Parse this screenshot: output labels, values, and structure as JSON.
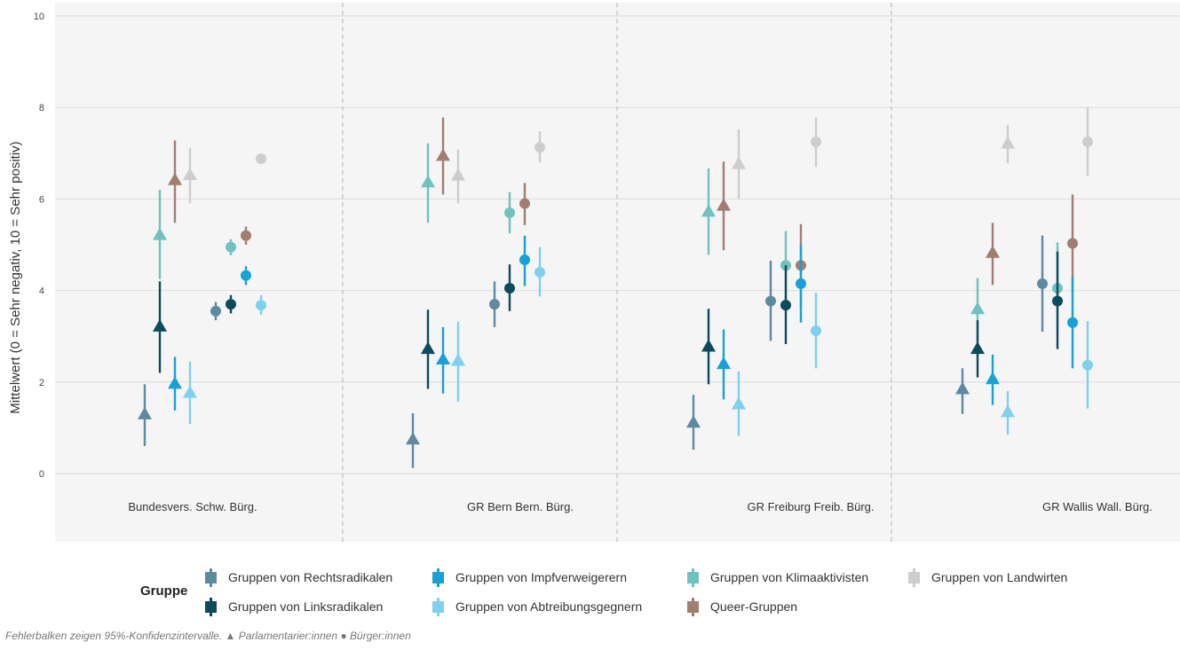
{
  "chart_data": {
    "type": "scatter",
    "title": "",
    "xlabel": "",
    "ylabel": "Mittelwert (0 = Sehr negativ, 10 = Sehr positiv)",
    "ylim": [
      -1.5,
      10
    ],
    "yticks": [
      0,
      2,
      4,
      6,
      8,
      10
    ],
    "grid": true,
    "legend_position": "bottom",
    "legend_title": "Gruppe",
    "categories": [
      "Bundesvers.",
      "Schw. Bürg.",
      "GR Bern",
      "Bern. Bürg.",
      "GR Freiburg",
      "Freib. Bürg.",
      "GR Wallis",
      "Wall. Bürg."
    ],
    "panels": [
      "Bundesversammlung / Schweiz",
      "Bern",
      "Freiburg",
      "Wallis"
    ],
    "series": [
      {
        "name": "Gruppen von Rechtsradikalen",
        "color": "#5e8aa1",
        "values": [
          1.3,
          3.55,
          0.75,
          3.7,
          1.12,
          3.77,
          1.85,
          4.15
        ],
        "lower": [
          0.6,
          3.35,
          0.12,
          3.2,
          0.52,
          2.9,
          1.3,
          3.1
        ],
        "upper": [
          1.95,
          3.75,
          1.32,
          4.2,
          1.72,
          4.65,
          2.3,
          5.2
        ]
      },
      {
        "name": "Gruppen von Linksradikalen",
        "color": "#0c4a5e",
        "values": [
          3.22,
          3.7,
          2.73,
          4.05,
          2.78,
          3.68,
          2.73,
          3.77
        ],
        "lower": [
          2.2,
          3.5,
          1.85,
          3.55,
          1.95,
          2.83,
          2.1,
          2.72
        ],
        "upper": [
          4.2,
          3.9,
          3.58,
          4.57,
          3.6,
          4.55,
          3.35,
          4.85
        ]
      },
      {
        "name": "Gruppen von Impfverweigerern",
        "color": "#17a1d4",
        "values": [
          1.97,
          4.33,
          2.5,
          4.67,
          2.4,
          4.15,
          2.07,
          3.3
        ],
        "lower": [
          1.38,
          4.12,
          1.75,
          4.1,
          1.62,
          3.3,
          1.5,
          2.3
        ],
        "upper": [
          2.55,
          4.53,
          3.2,
          5.2,
          3.15,
          5.0,
          2.6,
          4.3
        ]
      },
      {
        "name": "Gruppen von Abtreibungsgegnern",
        "color": "#7fd0ef",
        "values": [
          1.77,
          3.68,
          2.47,
          4.4,
          1.52,
          3.12,
          1.35,
          2.37
        ],
        "lower": [
          1.08,
          3.47,
          1.57,
          3.87,
          0.82,
          2.3,
          0.85,
          1.42
        ],
        "upper": [
          2.45,
          3.9,
          3.32,
          4.95,
          2.23,
          3.95,
          1.8,
          3.33
        ]
      },
      {
        "name": "Gruppen von Klimaaktivisten",
        "color": "#70c1bf",
        "values": [
          5.22,
          4.95,
          6.37,
          5.7,
          5.73,
          4.55,
          3.6,
          4.05
        ],
        "lower": [
          4.25,
          4.77,
          5.48,
          5.25,
          4.78,
          3.78,
          2.9,
          3.05
        ],
        "upper": [
          6.2,
          5.12,
          7.22,
          6.15,
          6.67,
          5.3,
          4.27,
          5.05
        ]
      },
      {
        "name": "Queer-Gruppen",
        "color": "#a17e70",
        "values": [
          6.42,
          5.2,
          6.95,
          5.9,
          5.86,
          4.55,
          4.83,
          5.03
        ],
        "lower": [
          5.48,
          5.0,
          6.1,
          5.43,
          4.88,
          3.62,
          4.12,
          3.95
        ],
        "upper": [
          7.28,
          5.4,
          7.78,
          6.35,
          6.82,
          5.45,
          5.48,
          6.1
        ]
      },
      {
        "name": "Gruppen von Landwirten",
        "color": "#cdcdcd",
        "values": [
          6.53,
          6.88,
          6.52,
          7.13,
          6.77,
          7.25,
          7.22,
          7.25
        ],
        "lower": [
          5.9,
          6.78,
          5.9,
          6.8,
          6.0,
          6.7,
          6.78,
          6.5
        ],
        "upper": [
          7.12,
          6.98,
          7.08,
          7.48,
          7.52,
          7.78,
          7.62,
          8.0
        ]
      }
    ],
    "annotations": [
      "Fehlerbalken zeigen 95%-Konfidenzintervalle.",
      "▲ Parlamentarier:innen",
      "● Bürger:innen"
    ]
  }
}
